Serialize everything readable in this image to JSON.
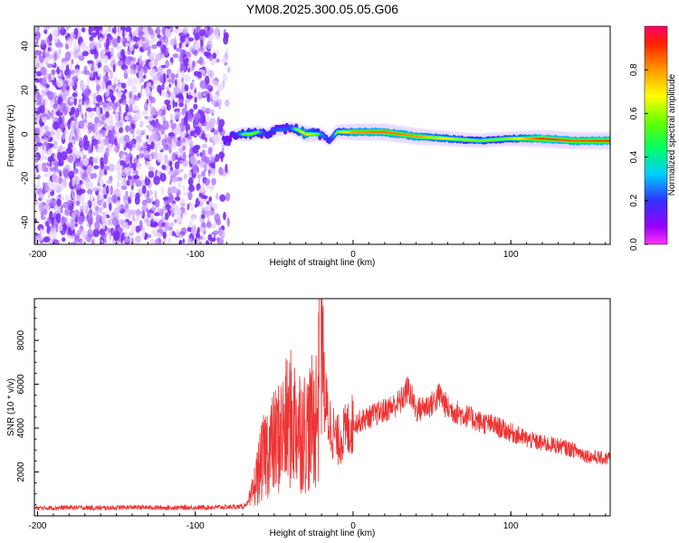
{
  "title": "YM08.2025.300.05.05.G06",
  "chart_data": [
    {
      "type": "heatmap",
      "xlabel": "Height of straight line (km)",
      "ylabel": "Frequency (Hz)",
      "xlim": [
        -202,
        163
      ],
      "ylim": [
        -50,
        49
      ],
      "xticks": [
        -200,
        -100,
        0,
        100
      ],
      "yticks": [
        -40,
        -20,
        0,
        20,
        40
      ],
      "colorbar": {
        "label": "Normalized spectral amplitude",
        "range": [
          0,
          1
        ],
        "ticks": [
          0.0,
          0.2,
          0.4,
          0.6,
          0.8
        ],
        "tick_labels": [
          "0.0",
          "0.2",
          "0.4",
          "0.6",
          "0.8"
        ]
      },
      "noise_region": {
        "x_from": -202,
        "x_to": -80,
        "amplitude": 0.1
      },
      "ridge": {
        "x": [
          -82,
          -75,
          -70,
          -65,
          -60,
          -55,
          -50,
          -45,
          -40,
          -35,
          -30,
          -25,
          -20,
          -15,
          -10,
          0,
          20,
          40,
          60,
          80,
          100,
          120,
          140,
          163
        ],
        "freq": [
          -3,
          0,
          0,
          0,
          1,
          0,
          2,
          2,
          3,
          2,
          0,
          0,
          0,
          -3,
          1,
          1,
          1,
          -1,
          -2,
          -3,
          -2,
          -2,
          -3,
          -3
        ],
        "amplitude": [
          0.1,
          0.25,
          0.5,
          0.6,
          0.5,
          0.3,
          0.35,
          0.4,
          0.35,
          0.6,
          0.75,
          0.6,
          0.45,
          0.3,
          0.55,
          0.8,
          0.85,
          0.8,
          0.65,
          0.55,
          0.6,
          0.9,
          0.85,
          0.9
        ]
      }
    },
    {
      "type": "line",
      "xlabel": "Height of straight line (km)",
      "ylabel": "SNR (10 * v/v)",
      "xlim": [
        -202,
        163
      ],
      "ylim": [
        0,
        9900
      ],
      "xticks": [
        -200,
        -100,
        0,
        100
      ],
      "yticks": [
        2000,
        4000,
        6000,
        8000
      ],
      "series": [
        {
          "name": "SNR",
          "color": "#ee3333",
          "x": [
            -202,
            -180,
            -160,
            -140,
            -120,
            -100,
            -80,
            -70,
            -65,
            -60,
            -55,
            -50,
            -45,
            -40,
            -35,
            -30,
            -25,
            -22,
            -20,
            -18,
            -15,
            -10,
            -5,
            0,
            10,
            20,
            30,
            35,
            40,
            50,
            55,
            60,
            70,
            80,
            90,
            100,
            110,
            120,
            130,
            140,
            150,
            160,
            163
          ],
          "y": [
            350,
            380,
            360,
            390,
            370,
            380,
            400,
            420,
            700,
            2000,
            3000,
            3300,
            3800,
            4400,
            4200,
            3800,
            4300,
            5000,
            9900,
            5200,
            4300,
            3400,
            3800,
            4200,
            4500,
            4800,
            5200,
            5800,
            4800,
            5100,
            5500,
            4900,
            4600,
            4300,
            4100,
            3800,
            3500,
            3300,
            3200,
            3000,
            2700,
            2600,
            2700
          ]
        }
      ]
    }
  ]
}
